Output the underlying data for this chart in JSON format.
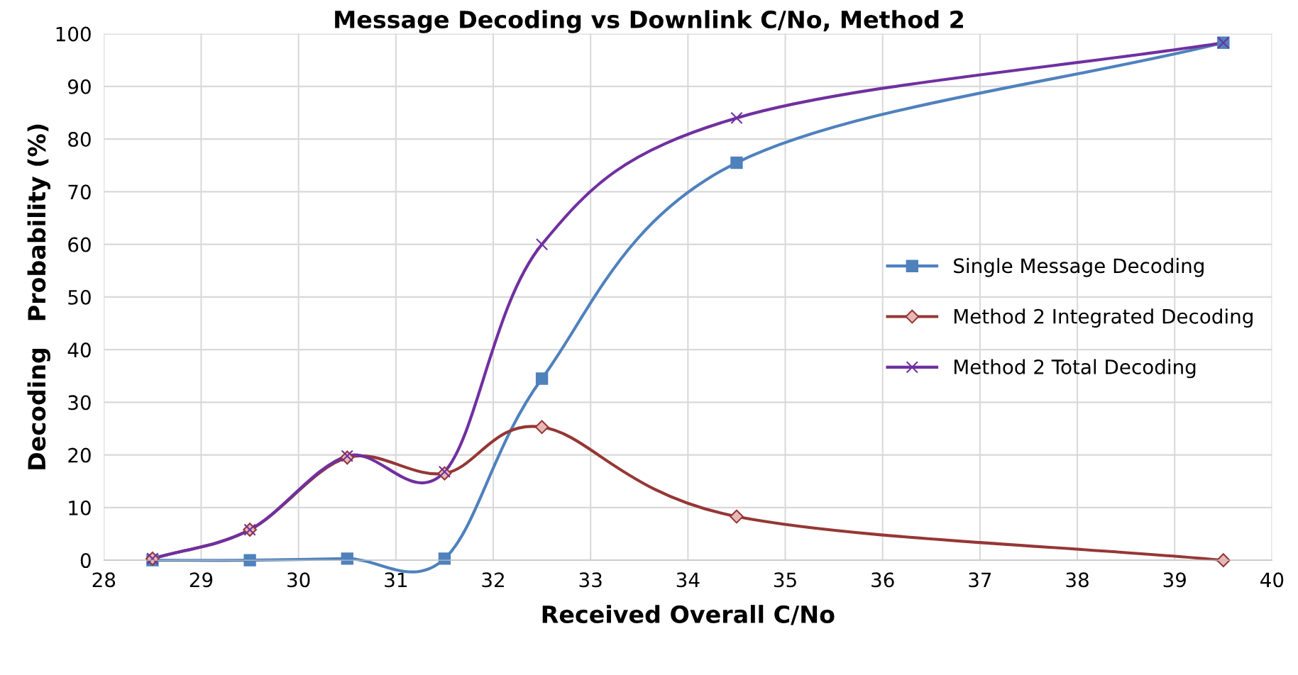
{
  "chart_data": {
    "type": "line",
    "title": "Message Decoding vs Downlink C/No, Method 2",
    "xlabel": "Received Overall C/No",
    "ylabel": "Decoding   Probability (%)",
    "x": [
      28.5,
      29.5,
      30.5,
      31.5,
      32.5,
      34.5,
      39.5
    ],
    "series": [
      {
        "name": "Single Message Decoding",
        "color": "#4f81bd",
        "marker": "square",
        "values": [
          0,
          0,
          0.3,
          0.3,
          34.5,
          75.5,
          98.3
        ]
      },
      {
        "name": "Method 2 Integrated Decoding",
        "color": "#953735",
        "marker": "diamond",
        "values": [
          0.3,
          5.8,
          19.5,
          16.5,
          25.3,
          8.3,
          0
        ]
      },
      {
        "name": "Method 2 Total Decoding",
        "color": "#7030a0",
        "marker": "cross",
        "values": [
          0.3,
          5.8,
          19.8,
          16.8,
          60,
          84,
          98.3
        ]
      }
    ],
    "xlim": [
      28,
      40
    ],
    "xticks": [
      28,
      29,
      30,
      31,
      32,
      33,
      34,
      35,
      36,
      37,
      38,
      39,
      40
    ],
    "ylim": [
      0,
      100
    ],
    "yticks": [
      0,
      10,
      20,
      30,
      40,
      50,
      60,
      70,
      80,
      90,
      100
    ],
    "grid": true,
    "legend": "right",
    "line_style": "solid"
  }
}
